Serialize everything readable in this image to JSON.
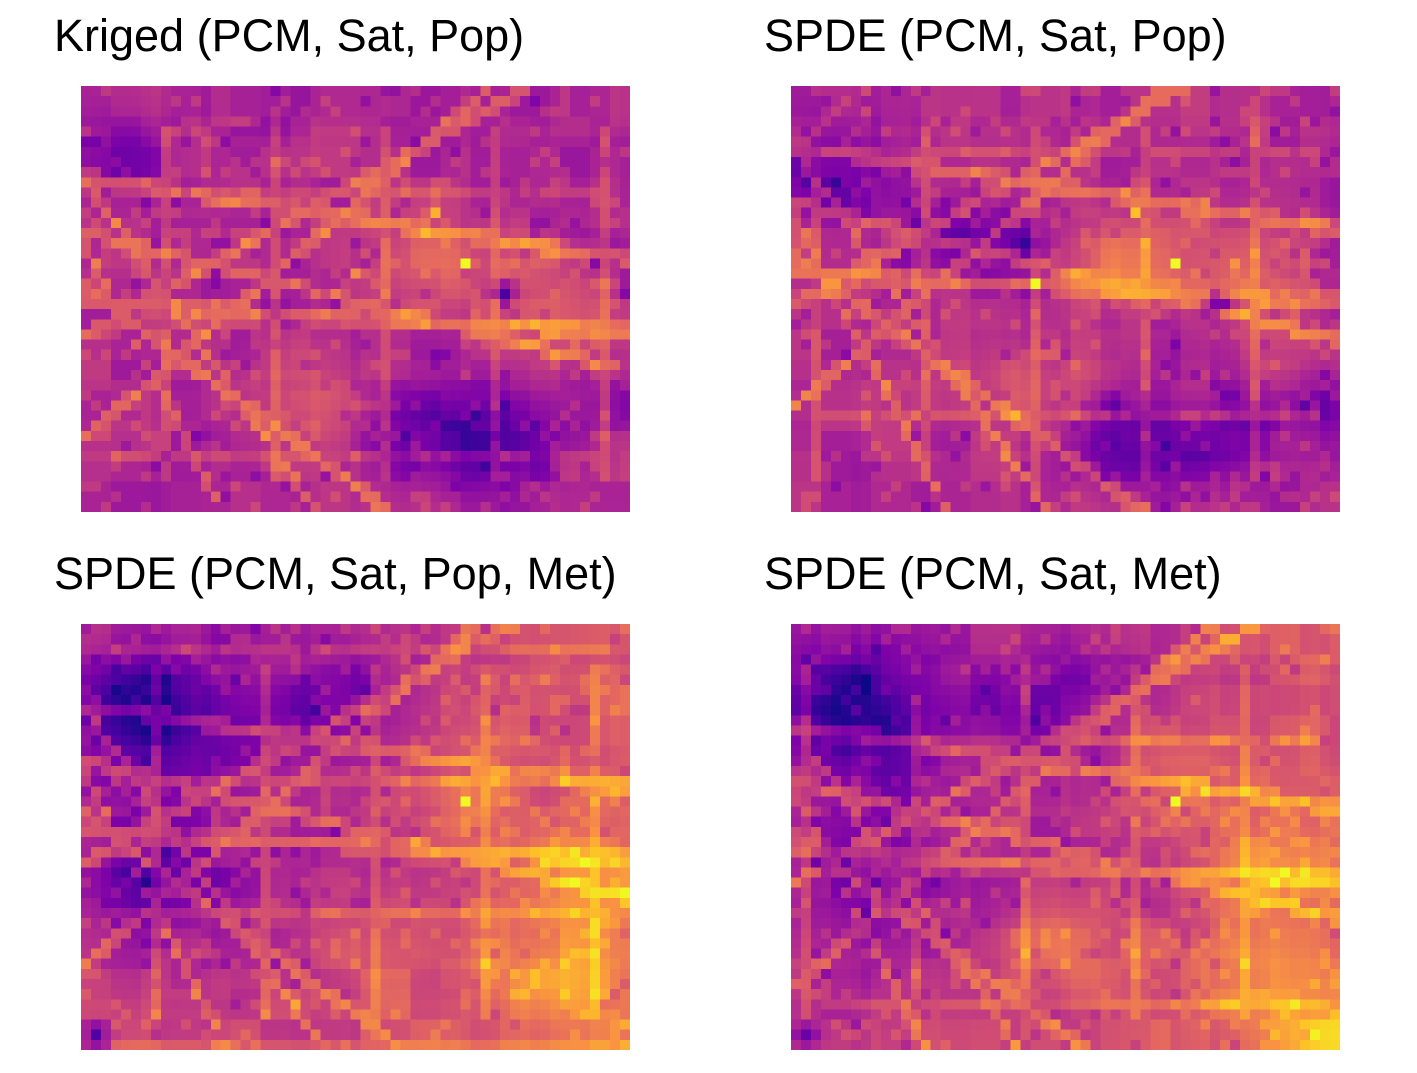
{
  "figure": {
    "panels": [
      {
        "id": "kriged-pcm-sat-pop",
        "title": "Kriged (PCM, Sat, Pop)"
      },
      {
        "id": "spde-pcm-sat-pop",
        "title": "SPDE (PCM, Sat, Pop)"
      },
      {
        "id": "spde-pcm-sat-pop-met",
        "title": "SPDE (PCM, Sat, Pop, Met)"
      },
      {
        "id": "spde-pcm-sat-met",
        "title": "SPDE (PCM, Sat, Met)"
      }
    ]
  },
  "chart_data": [
    {
      "type": "heatmap",
      "title": "Kriged (PCM, Sat, Pop)",
      "grid": {
        "cols": 55,
        "rows": 42
      },
      "colormap": "plasma",
      "color_range": [
        0,
        1
      ],
      "axes_visible": false,
      "legend": "none",
      "features": {
        "hotspots": [
          [
            38,
            17,
            1.0
          ],
          [
            35,
            12,
            0.82
          ],
          [
            27,
            18,
            0.72
          ],
          [
            49,
            25,
            0.62
          ]
        ],
        "lowspots": [
          [
            42,
            20,
            0.12
          ],
          [
            38,
            37,
            0.18
          ],
          [
            5,
            6,
            0.22
          ]
        ],
        "high_region": [
          [
            22,
            30,
            0.66
          ],
          [
            34,
            17,
            0.72
          ],
          [
            44,
            18,
            0.66
          ],
          [
            49,
            24,
            0.6
          ]
        ],
        "low_region": [
          [
            35,
            35,
            0.12
          ],
          [
            42,
            34,
            0.14
          ],
          [
            52,
            30,
            0.2
          ],
          [
            3,
            7,
            0.2
          ]
        ]
      }
    },
    {
      "type": "heatmap",
      "title": "SPDE (PCM, Sat, Pop)",
      "grid": {
        "cols": 55,
        "rows": 42
      },
      "colormap": "plasma",
      "color_range": [
        0,
        1
      ],
      "axes_visible": false,
      "legend": "none",
      "features": {
        "hotspots": [
          [
            38,
            17,
            1.0
          ],
          [
            34,
            12,
            0.86
          ],
          [
            24,
            19,
            0.72
          ],
          [
            44,
            17,
            0.66
          ]
        ],
        "lowspots": [
          [
            23,
            15,
            0.08
          ],
          [
            42,
            21,
            0.1
          ],
          [
            32,
            31,
            0.18
          ],
          [
            6,
            11,
            0.18
          ]
        ],
        "high_region": [
          [
            24,
            30,
            0.68
          ],
          [
            33,
            17,
            0.76
          ],
          [
            44,
            17,
            0.7
          ],
          [
            49,
            24,
            0.58
          ]
        ],
        "low_region": [
          [
            18,
            14,
            0.12
          ],
          [
            32,
            35,
            0.1
          ],
          [
            41,
            35,
            0.12
          ],
          [
            53,
            31,
            0.16
          ],
          [
            4,
            8,
            0.16
          ]
        ]
      }
    },
    {
      "type": "heatmap",
      "title": "SPDE (PCM, Sat, Pop, Met)",
      "grid": {
        "cols": 55,
        "rows": 42
      },
      "colormap": "plasma",
      "color_range": [
        0,
        1
      ],
      "axes_visible": false,
      "legend": "none",
      "features": {
        "hotspots": [
          [
            38,
            17,
            1.0
          ],
          [
            49,
            25,
            0.84
          ],
          [
            48,
            34,
            0.78
          ],
          [
            54,
            40,
            0.72
          ]
        ],
        "lowspots": [
          [
            6,
            8,
            0.08
          ],
          [
            4,
            24,
            0.12
          ],
          [
            1,
            40,
            0.14
          ],
          [
            28,
            6,
            0.18
          ]
        ],
        "high_region": [
          [
            40,
            16,
            0.7
          ],
          [
            49,
            24,
            0.72
          ],
          [
            46,
            34,
            0.7
          ],
          [
            30,
            32,
            0.6
          ]
        ],
        "low_region": [
          [
            6,
            8,
            0.1
          ],
          [
            8,
            25,
            0.16
          ],
          [
            22,
            9,
            0.18
          ],
          [
            28,
            5,
            0.2
          ]
        ]
      }
    },
    {
      "type": "heatmap",
      "title": "SPDE (PCM, Sat, Met)",
      "grid": {
        "cols": 55,
        "rows": 42
      },
      "colormap": "plasma",
      "color_range": [
        0,
        1
      ],
      "axes_visible": false,
      "legend": "none",
      "features": {
        "hotspots": [
          [
            38,
            17,
            1.0
          ],
          [
            48,
            25,
            0.86
          ],
          [
            45,
            33,
            0.8
          ],
          [
            54,
            40,
            0.78
          ],
          [
            25,
            31,
            0.72
          ]
        ],
        "lowspots": [
          [
            6,
            8,
            0.08
          ],
          [
            3,
            23,
            0.14
          ],
          [
            1,
            40,
            0.2
          ],
          [
            28,
            5,
            0.22
          ]
        ],
        "high_region": [
          [
            39,
            16,
            0.72
          ],
          [
            48,
            24,
            0.74
          ],
          [
            45,
            34,
            0.72
          ],
          [
            27,
            31,
            0.68
          ],
          [
            54,
            40,
            0.72
          ]
        ],
        "low_region": [
          [
            6,
            8,
            0.1
          ],
          [
            8,
            25,
            0.18
          ],
          [
            22,
            9,
            0.2
          ],
          [
            28,
            5,
            0.22
          ]
        ]
      }
    }
  ]
}
